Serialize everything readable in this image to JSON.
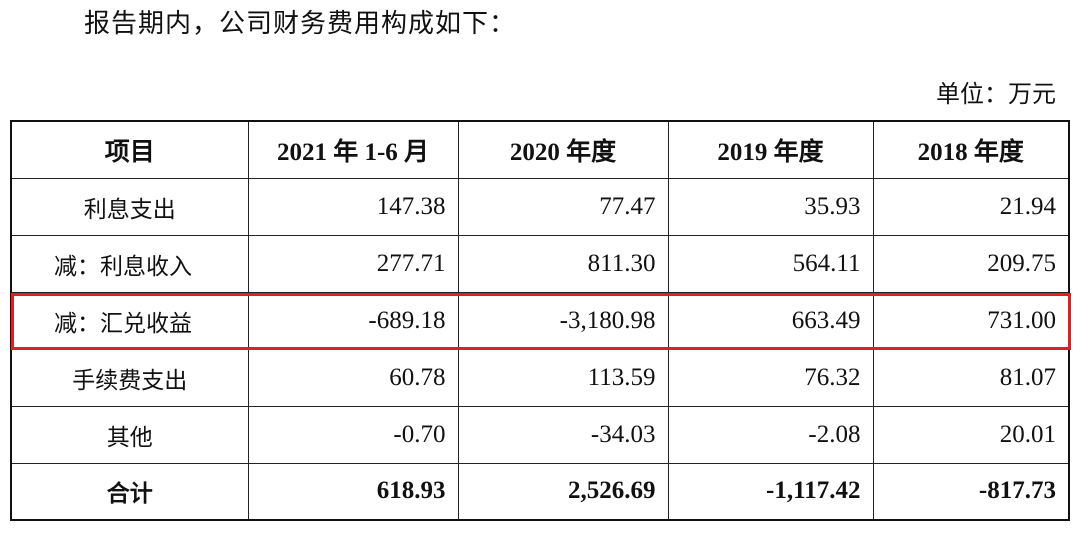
{
  "intro_text": "报告期内，公司财务费用构成如下：",
  "unit_label": "单位：万元",
  "table": {
    "headers": [
      "项目",
      "2021 年 1-6 月",
      "2020 年度",
      "2019 年度",
      "2018 年度"
    ],
    "rows": [
      {
        "item": "利息支出",
        "values": [
          "147.38",
          "77.47",
          "35.93",
          "21.94"
        ]
      },
      {
        "item": "减：利息收入",
        "values": [
          "277.71",
          "811.30",
          "564.11",
          "209.75"
        ]
      },
      {
        "item": "减：汇兑收益",
        "values": [
          "-689.18",
          "-3,180.98",
          "663.49",
          "731.00"
        ]
      },
      {
        "item": "手续费支出",
        "values": [
          "60.78",
          "113.59",
          "76.32",
          "81.07"
        ]
      },
      {
        "item": "其他",
        "values": [
          "-0.70",
          "-34.03",
          "-2.08",
          "20.01"
        ]
      },
      {
        "item": "合计",
        "values": [
          "618.93",
          "2,526.69",
          "-1,117.42",
          "-817.73"
        ]
      }
    ]
  },
  "highlight": {
    "row_item": "减：汇兑收益",
    "color": "#e02020"
  }
}
